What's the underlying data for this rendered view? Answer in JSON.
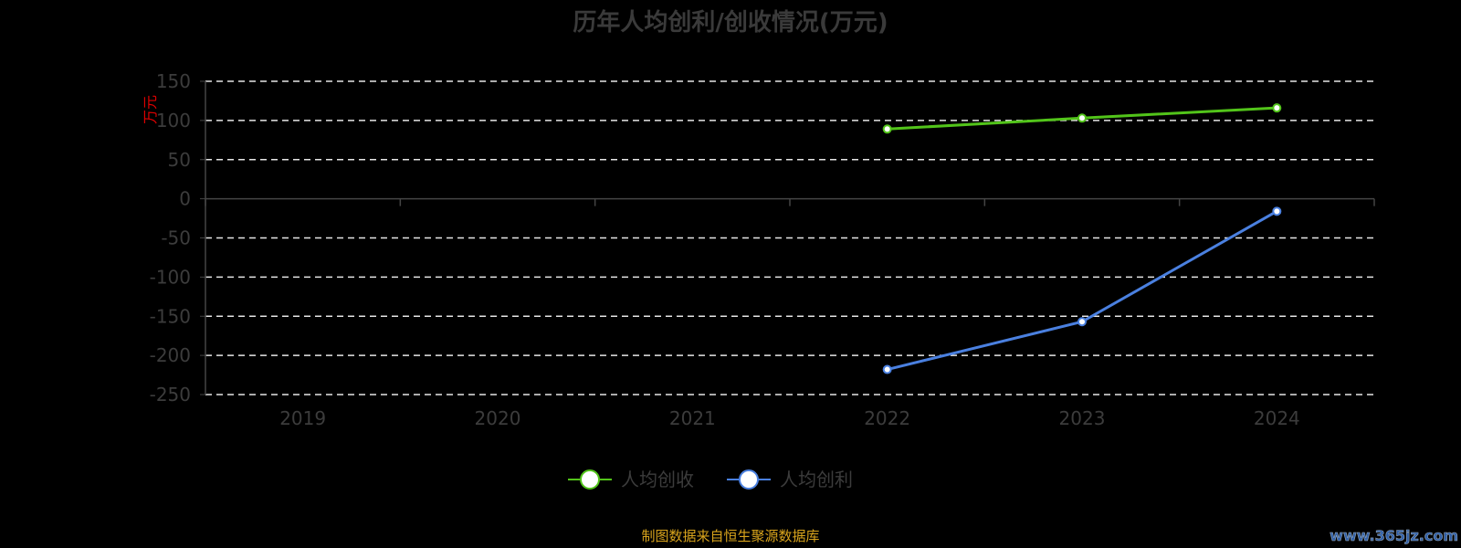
{
  "chart_data": {
    "type": "line",
    "title": "历年人均创利/创收情况(万元)",
    "ylabel": "万元",
    "xlabel": "",
    "categories": [
      "2019",
      "2020",
      "2021",
      "2022",
      "2023",
      "2024"
    ],
    "ylim": [
      -250,
      150
    ],
    "yticks": [
      150,
      100,
      50,
      0,
      -50,
      -100,
      -150,
      -200,
      -250
    ],
    "grid": true,
    "legend_position": "bottom",
    "series": [
      {
        "name": "人均创收",
        "color": "#52c41a",
        "values": [
          null,
          null,
          null,
          89,
          103,
          116
        ]
      },
      {
        "name": "人均创利",
        "color": "#4a80e0",
        "values": [
          null,
          null,
          null,
          -218,
          -157,
          -16
        ]
      }
    ]
  },
  "footer": "制图数据来自恒生聚源数据库",
  "watermark": "www.365jz.com"
}
